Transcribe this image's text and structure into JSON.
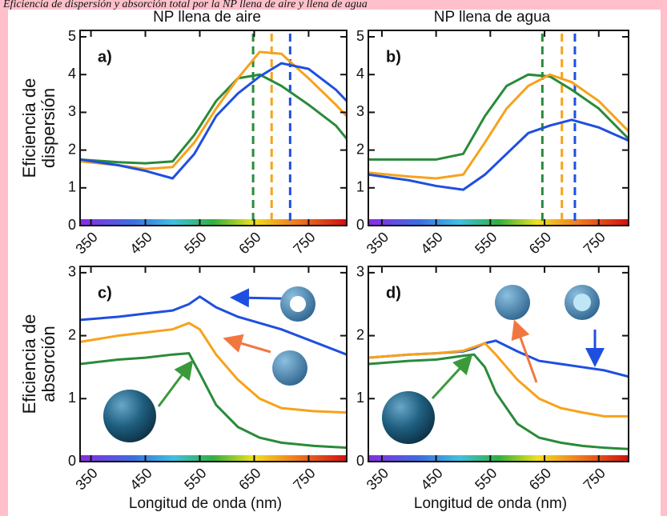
{
  "caption": "Eficiencia de dispersión y absorción total por la NP llena de aire y llena de agua",
  "chart_data": [
    {
      "type": "line",
      "title": "NP llena de aire",
      "panel_label": "a)",
      "ylabel": [
        "Eficiencia de",
        "dispersión"
      ],
      "x": [
        330,
        400,
        450,
        500,
        540,
        580,
        620,
        660,
        700,
        750,
        800,
        820
      ],
      "series": [
        {
          "color": "#2a8a3a",
          "values": [
            1.75,
            1.68,
            1.65,
            1.7,
            2.4,
            3.3,
            3.9,
            4.0,
            3.7,
            3.2,
            2.65,
            2.3
          ]
        },
        {
          "color": "#f7a21b",
          "values": [
            1.7,
            1.6,
            1.5,
            1.55,
            2.2,
            3.1,
            3.9,
            4.6,
            4.55,
            3.9,
            3.2,
            2.9
          ]
        },
        {
          "color": "#1f4fe0",
          "values": [
            1.75,
            1.6,
            1.45,
            1.25,
            1.9,
            2.9,
            3.5,
            3.95,
            4.3,
            4.15,
            3.6,
            3.3
          ]
        }
      ],
      "reference_lines": [
        {
          "x": 648,
          "color": "#2a8a3a"
        },
        {
          "x": 682,
          "color": "#f7a21b"
        },
        {
          "x": 716,
          "color": "#1f4fe0"
        }
      ],
      "xlim": [
        330,
        820
      ],
      "ylim": [
        0,
        5.17
      ],
      "xticks": [
        350,
        450,
        550,
        650,
        750
      ],
      "yticks": [
        0,
        1,
        2,
        3,
        4,
        5
      ]
    },
    {
      "type": "line",
      "title": "NP llena de agua",
      "panel_label": "b)",
      "x": [
        325,
        400,
        450,
        500,
        540,
        580,
        620,
        660,
        700,
        750,
        805
      ],
      "series": [
        {
          "color": "#2a8a3a",
          "values": [
            1.75,
            1.75,
            1.75,
            1.9,
            2.9,
            3.7,
            4.0,
            3.95,
            3.6,
            3.1,
            2.3
          ]
        },
        {
          "color": "#f7a21b",
          "values": [
            1.4,
            1.3,
            1.25,
            1.35,
            2.2,
            3.1,
            3.7,
            4.0,
            3.8,
            3.3,
            2.5
          ]
        },
        {
          "color": "#1f4fe0",
          "values": [
            1.35,
            1.2,
            1.05,
            0.95,
            1.35,
            1.9,
            2.45,
            2.65,
            2.8,
            2.6,
            2.25
          ]
        }
      ],
      "reference_lines": [
        {
          "x": 646,
          "color": "#2a8a3a"
        },
        {
          "x": 682,
          "color": "#f7a21b"
        },
        {
          "x": 706,
          "color": "#1f4fe0"
        }
      ],
      "xlim": [
        325,
        805
      ],
      "ylim": [
        0,
        5.17
      ],
      "xticks": [
        350,
        450,
        550,
        650,
        750
      ],
      "yticks": [
        0,
        1,
        2,
        3,
        4,
        5
      ]
    },
    {
      "type": "line",
      "panel_label": "c)",
      "ylabel": [
        "Eficiencia de",
        "absorción"
      ],
      "xlabel": "Longitud de onda (nm)",
      "x": [
        330,
        400,
        450,
        500,
        530,
        550,
        580,
        620,
        660,
        700,
        760,
        820
      ],
      "series": [
        {
          "color": "#1f4fe0",
          "values": [
            2.25,
            2.3,
            2.35,
            2.4,
            2.5,
            2.62,
            2.45,
            2.3,
            2.2,
            2.1,
            1.9,
            1.7
          ]
        },
        {
          "color": "#f7a21b",
          "values": [
            1.9,
            2.0,
            2.05,
            2.1,
            2.2,
            2.1,
            1.7,
            1.3,
            1.0,
            0.85,
            0.8,
            0.78
          ]
        },
        {
          "color": "#2a8a3a",
          "values": [
            1.55,
            1.62,
            1.65,
            1.7,
            1.72,
            1.4,
            0.9,
            0.55,
            0.38,
            0.3,
            0.25,
            0.22
          ]
        }
      ],
      "xlim": [
        330,
        820
      ],
      "ylim": [
        0,
        3.1
      ],
      "xticks": [
        350,
        450,
        550,
        650,
        750
      ],
      "yticks": [
        0,
        1,
        2,
        3
      ]
    },
    {
      "type": "line",
      "panel_label": "d)",
      "xlabel": "Longitud de onda (nm)",
      "x": [
        325,
        400,
        450,
        500,
        520,
        540,
        560,
        600,
        640,
        680,
        720,
        760,
        805
      ],
      "series": [
        {
          "color": "#1f4fe0",
          "values": [
            1.65,
            1.7,
            1.72,
            1.75,
            1.8,
            1.88,
            1.92,
            1.75,
            1.6,
            1.55,
            1.5,
            1.45,
            1.35
          ]
        },
        {
          "color": "#f7a21b",
          "values": [
            1.65,
            1.7,
            1.72,
            1.76,
            1.82,
            1.88,
            1.7,
            1.3,
            1.0,
            0.85,
            0.78,
            0.72,
            0.72
          ]
        },
        {
          "color": "#2a8a3a",
          "values": [
            1.55,
            1.6,
            1.62,
            1.68,
            1.7,
            1.5,
            1.1,
            0.6,
            0.38,
            0.3,
            0.25,
            0.22,
            0.2
          ]
        }
      ],
      "xlim": [
        325,
        805
      ],
      "ylim": [
        0,
        3.1
      ],
      "xticks": [
        350,
        450,
        550,
        650,
        750
      ],
      "yticks": [
        0,
        1,
        2,
        3
      ]
    }
  ]
}
